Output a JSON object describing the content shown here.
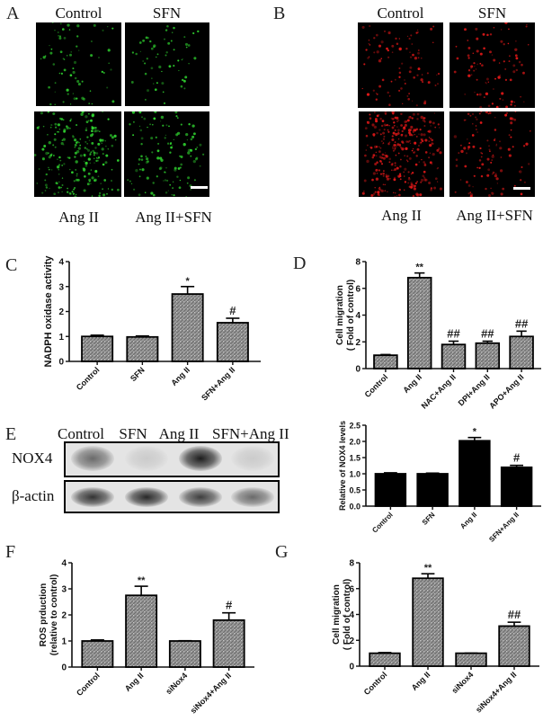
{
  "panels": {
    "A": {
      "label": "A",
      "top_captions": [
        "Control",
        "SFN"
      ],
      "bottom_captions": [
        "Ang II",
        "Ang II+SFN"
      ],
      "stain_color": "#2fd12f",
      "densities": [
        70,
        60,
        220,
        120
      ]
    },
    "B": {
      "label": "B",
      "top_captions": [
        "Control",
        "SFN"
      ],
      "bottom_captions": [
        "Ang II",
        "Ang II+SFN"
      ],
      "stain_color": "#e01818",
      "densities": [
        90,
        90,
        320,
        110
      ]
    },
    "C": {
      "label": "C"
    },
    "D": {
      "label": "D"
    },
    "E": {
      "label": "E",
      "lanes": [
        "Control",
        "SFN",
        "Ang II",
        "SFN+Ang II"
      ],
      "rows": [
        "NOX4",
        "β-actin"
      ],
      "nox4_intensity": [
        0.55,
        0.12,
        0.9,
        0.12
      ],
      "actin_intensity": [
        0.8,
        0.85,
        0.75,
        0.55
      ]
    },
    "F": {
      "label": "F"
    },
    "G": {
      "label": "G"
    }
  },
  "chart_data": [
    {
      "id": "C",
      "type": "bar",
      "title": "",
      "xlabel": "",
      "ylabel": "NADPH oxidase activity",
      "categories": [
        "Control",
        "SFN",
        "Ang II",
        "SFN+Ang II"
      ],
      "values": [
        1.0,
        0.98,
        2.7,
        1.55
      ],
      "errors": [
        0.05,
        0.04,
        0.3,
        0.18
      ],
      "annotations": [
        "",
        "",
        "*",
        "#"
      ],
      "ylim": [
        0,
        4
      ],
      "yticks": [
        0,
        1,
        2,
        3,
        4
      ],
      "bar_fill": "hatched-gray",
      "grid": false
    },
    {
      "id": "D",
      "type": "bar",
      "title": "",
      "xlabel": "",
      "ylabel": "Cell migration ( Fold of control)",
      "categories": [
        "Control",
        "Ang II",
        "NAC+Ang II",
        "DPI+Ang II",
        "APO+Ang II"
      ],
      "values": [
        1.0,
        6.8,
        1.8,
        1.9,
        2.4
      ],
      "errors": [
        0.05,
        0.35,
        0.25,
        0.15,
        0.4
      ],
      "annotations": [
        "",
        "**",
        "##",
        "##",
        "##"
      ],
      "ylim": [
        0,
        8
      ],
      "yticks": [
        0,
        2,
        4,
        6,
        8
      ],
      "bar_fill": "hatched-gray",
      "grid": false
    },
    {
      "id": "E-quant",
      "type": "bar",
      "title": "",
      "xlabel": "",
      "ylabel": "Relative of NOX4 levels",
      "categories": [
        "Control",
        "SFN",
        "Ang II",
        "SFN+Ang II"
      ],
      "values": [
        1.0,
        1.0,
        2.02,
        1.2
      ],
      "errors": [
        0.03,
        0.02,
        0.1,
        0.06
      ],
      "annotations": [
        "",
        "",
        "*",
        "#"
      ],
      "ylim": [
        0,
        2.5
      ],
      "yticks": [
        0.0,
        0.5,
        1.0,
        1.5,
        2.0,
        2.5
      ],
      "bar_fill": "black",
      "grid": false
    },
    {
      "id": "F",
      "type": "bar",
      "title": "",
      "xlabel": "",
      "ylabel": "ROS prduction (relative to control)",
      "categories": [
        "Control",
        "Ang II",
        "siNox4",
        "siNox4+Ang II"
      ],
      "values": [
        1.0,
        2.75,
        1.0,
        1.8
      ],
      "errors": [
        0.04,
        0.35,
        0.01,
        0.28
      ],
      "annotations": [
        "",
        "**",
        "",
        "#"
      ],
      "ylim": [
        0,
        4
      ],
      "yticks": [
        0,
        1,
        2,
        3,
        4
      ],
      "bar_fill": "hatched-gray",
      "grid": false
    },
    {
      "id": "G",
      "type": "bar",
      "title": "",
      "xlabel": "",
      "ylabel": "Cell migration ( Fold of control)",
      "categories": [
        "Control",
        "Ang II",
        "siNox4",
        "siNox4+Ang II"
      ],
      "values": [
        1.0,
        6.8,
        1.0,
        3.1
      ],
      "errors": [
        0.05,
        0.35,
        0.01,
        0.3
      ],
      "annotations": [
        "",
        "**",
        "",
        "##"
      ],
      "ylim": [
        0,
        8
      ],
      "yticks": [
        0,
        2,
        4,
        6,
        8
      ],
      "bar_fill": "hatched-gray",
      "grid": false
    }
  ]
}
